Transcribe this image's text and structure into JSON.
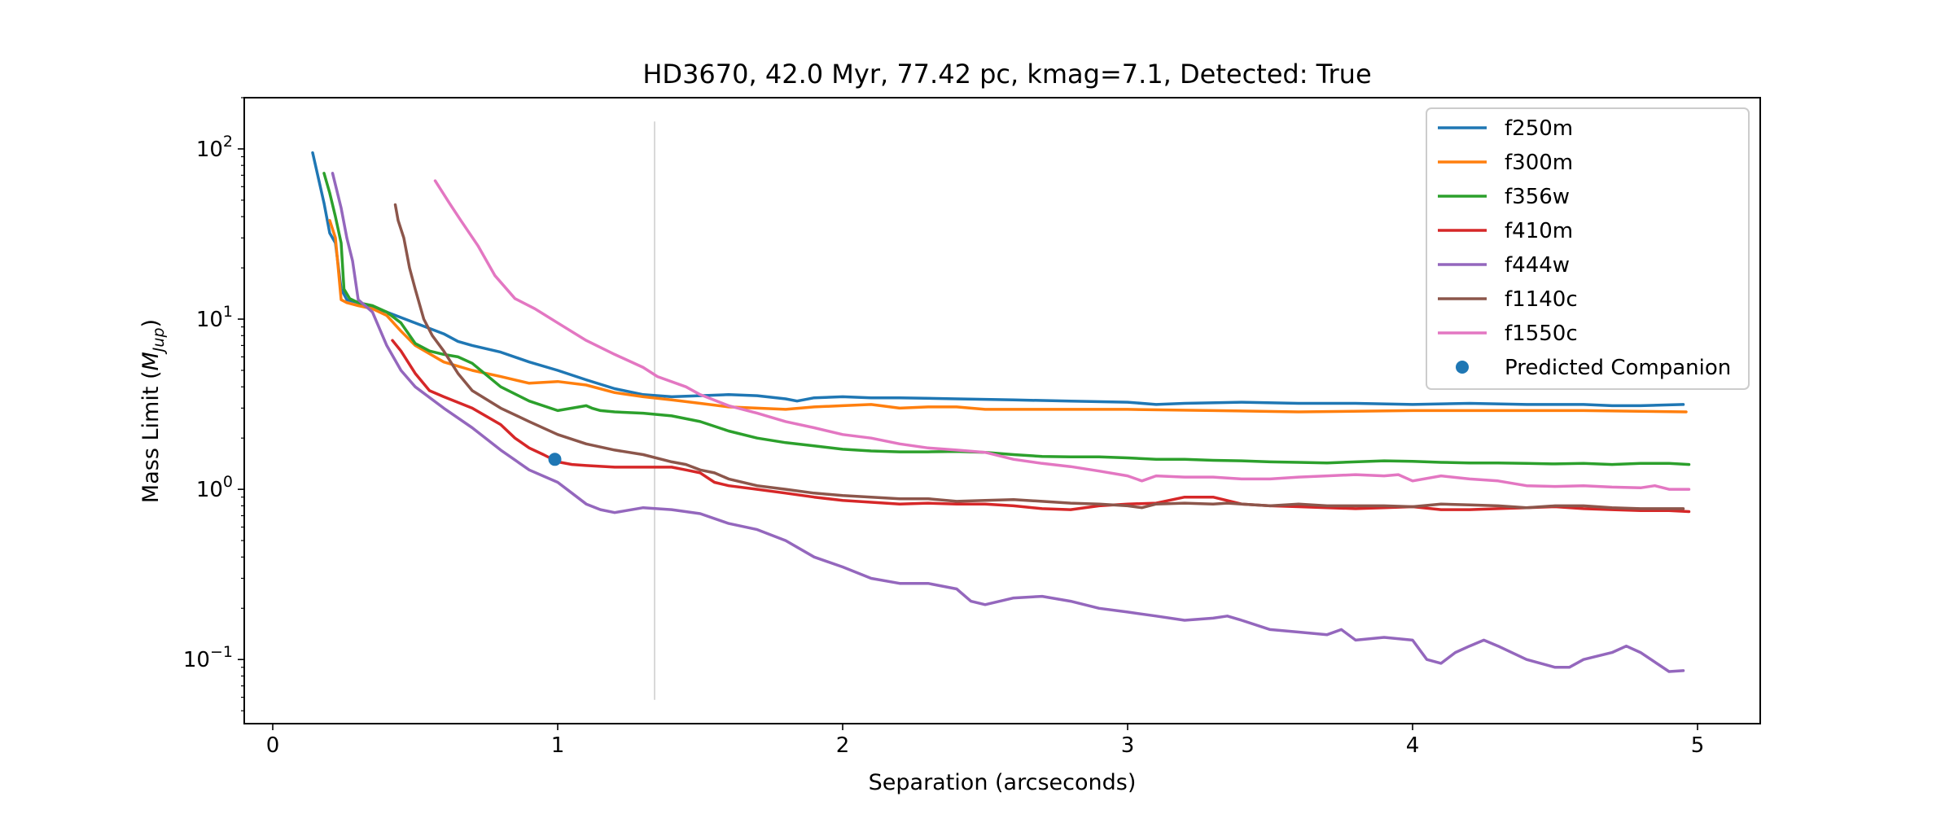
{
  "chart_data": {
    "type": "line",
    "title": "HD3670, 42.0 Myr, 77.42 pc, kmag=7.1, Detected: True",
    "xlabel": "Separation (arcseconds)",
    "ylabel_prefix": "Mass Limit (",
    "ylabel_symbol": "M",
    "ylabel_subscript": "Jup",
    "ylabel_suffix": ")",
    "xlim": [
      -0.1,
      5.22
    ],
    "ylim": [
      0.042,
      200
    ],
    "yscale": "log",
    "x_ticks": [
      0,
      1,
      2,
      3,
      4,
      5
    ],
    "x_tick_labels": [
      "0",
      "1",
      "2",
      "3",
      "4",
      "5"
    ],
    "y_ticks": [
      {
        "value": 100,
        "base": "10",
        "exp": "2"
      },
      {
        "value": 10,
        "base": "10",
        "exp": "1"
      },
      {
        "value": 1,
        "base": "10",
        "exp": "0"
      },
      {
        "value": 0.1,
        "base": "10",
        "exp": "−1"
      }
    ],
    "grid": false,
    "legend_position": "top-right",
    "vertical_line": {
      "x": 1.34,
      "y_range": [
        0.058,
        145
      ],
      "color": "#d9d9d9"
    },
    "series": [
      {
        "name": "f250m",
        "color": "#1f77b4",
        "x": [
          0.14,
          0.18,
          0.2,
          0.22,
          0.24,
          0.26,
          0.3,
          0.4,
          0.5,
          0.6,
          0.65,
          0.7,
          0.8,
          0.9,
          1.0,
          1.1,
          1.2,
          1.3,
          1.4,
          1.5,
          1.6,
          1.7,
          1.8,
          1.84,
          1.9,
          2.0,
          2.1,
          2.2,
          2.4,
          2.6,
          2.8,
          3.0,
          3.1,
          3.2,
          3.4,
          3.6,
          3.8,
          4.0,
          4.2,
          4.4,
          4.6,
          4.7,
          4.8,
          4.95
        ],
        "y": [
          95,
          48,
          32,
          28,
          15,
          13,
          12.5,
          11,
          9.5,
          8.2,
          7.4,
          7.0,
          6.4,
          5.6,
          5.0,
          4.4,
          3.9,
          3.6,
          3.5,
          3.55,
          3.6,
          3.55,
          3.4,
          3.3,
          3.45,
          3.5,
          3.45,
          3.45,
          3.4,
          3.35,
          3.3,
          3.25,
          3.15,
          3.2,
          3.25,
          3.2,
          3.2,
          3.15,
          3.2,
          3.15,
          3.15,
          3.1,
          3.1,
          3.15
        ]
      },
      {
        "name": "f300m",
        "color": "#ff7f0e",
        "x": [
          0.2,
          0.22,
          0.24,
          0.26,
          0.3,
          0.35,
          0.4,
          0.45,
          0.5,
          0.6,
          0.7,
          0.8,
          0.9,
          1.0,
          1.1,
          1.2,
          1.3,
          1.4,
          1.5,
          1.6,
          1.8,
          1.9,
          2.0,
          2.1,
          2.2,
          2.3,
          2.4,
          2.5,
          2.7,
          3.0,
          3.3,
          3.6,
          4.0,
          4.3,
          4.6,
          4.96
        ],
        "y": [
          38,
          30,
          13,
          12.5,
          12,
          11.5,
          10.5,
          8.5,
          7.0,
          5.6,
          5.0,
          4.6,
          4.2,
          4.3,
          4.1,
          3.7,
          3.5,
          3.35,
          3.2,
          3.05,
          2.95,
          3.05,
          3.1,
          3.15,
          3.0,
          3.05,
          3.05,
          2.95,
          2.95,
          2.95,
          2.9,
          2.85,
          2.9,
          2.9,
          2.9,
          2.85
        ]
      },
      {
        "name": "f356w",
        "color": "#2ca02c",
        "x": [
          0.18,
          0.2,
          0.22,
          0.24,
          0.25,
          0.27,
          0.3,
          0.35,
          0.4,
          0.45,
          0.5,
          0.55,
          0.6,
          0.65,
          0.7,
          0.8,
          0.9,
          1.0,
          1.05,
          1.1,
          1.12,
          1.15,
          1.2,
          1.3,
          1.4,
          1.5,
          1.6,
          1.7,
          1.8,
          1.9,
          2.0,
          2.1,
          2.2,
          2.3,
          2.4,
          2.5,
          2.6,
          2.7,
          2.8,
          2.9,
          3.0,
          3.1,
          3.2,
          3.3,
          3.4,
          3.5,
          3.6,
          3.7,
          3.8,
          3.9,
          4.0,
          4.1,
          4.2,
          4.3,
          4.4,
          4.5,
          4.6,
          4.7,
          4.8,
          4.9,
          4.97
        ],
        "y": [
          72,
          55,
          40,
          28,
          15,
          13.2,
          12.5,
          12,
          11,
          9.5,
          7.2,
          6.5,
          6.2,
          6.0,
          5.5,
          4.0,
          3.3,
          2.9,
          3.0,
          3.1,
          3.0,
          2.9,
          2.85,
          2.8,
          2.7,
          2.5,
          2.2,
          2.0,
          1.88,
          1.8,
          1.72,
          1.68,
          1.66,
          1.66,
          1.67,
          1.65,
          1.6,
          1.56,
          1.55,
          1.55,
          1.53,
          1.5,
          1.5,
          1.48,
          1.47,
          1.45,
          1.44,
          1.43,
          1.45,
          1.47,
          1.46,
          1.44,
          1.43,
          1.43,
          1.42,
          1.41,
          1.42,
          1.4,
          1.42,
          1.42,
          1.4
        ]
      },
      {
        "name": "f410m",
        "color": "#d62728",
        "x": [
          0.42,
          0.45,
          0.5,
          0.55,
          0.6,
          0.7,
          0.8,
          0.85,
          0.9,
          0.95,
          1.0,
          1.05,
          1.1,
          1.2,
          1.3,
          1.4,
          1.45,
          1.5,
          1.55,
          1.6,
          1.7,
          1.8,
          1.9,
          2.0,
          2.1,
          2.2,
          2.3,
          2.4,
          2.5,
          2.6,
          2.7,
          2.8,
          2.9,
          3.0,
          3.1,
          3.2,
          3.3,
          3.4,
          3.5,
          3.6,
          3.7,
          3.8,
          3.9,
          4.0,
          4.1,
          4.2,
          4.3,
          4.4,
          4.5,
          4.6,
          4.7,
          4.8,
          4.9,
          4.97
        ],
        "y": [
          7.5,
          6.5,
          4.8,
          3.8,
          3.5,
          3.0,
          2.4,
          2.0,
          1.75,
          1.6,
          1.45,
          1.4,
          1.38,
          1.35,
          1.35,
          1.35,
          1.3,
          1.25,
          1.1,
          1.05,
          1.0,
          0.95,
          0.9,
          0.86,
          0.84,
          0.82,
          0.83,
          0.82,
          0.82,
          0.8,
          0.77,
          0.76,
          0.8,
          0.82,
          0.83,
          0.9,
          0.9,
          0.82,
          0.8,
          0.79,
          0.78,
          0.77,
          0.78,
          0.79,
          0.76,
          0.76,
          0.77,
          0.78,
          0.79,
          0.77,
          0.76,
          0.75,
          0.75,
          0.74
        ]
      },
      {
        "name": "f444w",
        "color": "#9467bd",
        "x": [
          0.21,
          0.24,
          0.26,
          0.28,
          0.3,
          0.35,
          0.4,
          0.45,
          0.5,
          0.6,
          0.7,
          0.8,
          0.9,
          1.0,
          1.05,
          1.1,
          1.15,
          1.2,
          1.3,
          1.4,
          1.5,
          1.6,
          1.7,
          1.8,
          1.9,
          2.0,
          2.1,
          2.2,
          2.3,
          2.4,
          2.45,
          2.5,
          2.6,
          2.7,
          2.8,
          2.9,
          3.0,
          3.1,
          3.2,
          3.3,
          3.35,
          3.4,
          3.5,
          3.6,
          3.7,
          3.75,
          3.8,
          3.9,
          4.0,
          4.05,
          4.1,
          4.15,
          4.2,
          4.25,
          4.3,
          4.4,
          4.5,
          4.55,
          4.6,
          4.7,
          4.75,
          4.8,
          4.9,
          4.95
        ],
        "y": [
          72,
          45,
          30,
          22,
          13,
          11,
          7.0,
          5.0,
          4.0,
          3.0,
          2.3,
          1.7,
          1.3,
          1.1,
          0.95,
          0.82,
          0.76,
          0.73,
          0.78,
          0.76,
          0.72,
          0.63,
          0.58,
          0.5,
          0.4,
          0.35,
          0.3,
          0.28,
          0.28,
          0.26,
          0.22,
          0.21,
          0.23,
          0.235,
          0.22,
          0.2,
          0.19,
          0.18,
          0.17,
          0.175,
          0.18,
          0.17,
          0.15,
          0.145,
          0.14,
          0.15,
          0.13,
          0.135,
          0.13,
          0.1,
          0.095,
          0.11,
          0.12,
          0.13,
          0.12,
          0.1,
          0.09,
          0.09,
          0.1,
          0.11,
          0.12,
          0.11,
          0.085,
          0.086
        ]
      },
      {
        "name": "f1140c",
        "color": "#8c564b",
        "x": [
          0.43,
          0.44,
          0.46,
          0.48,
          0.5,
          0.53,
          0.56,
          0.6,
          0.65,
          0.7,
          0.8,
          0.9,
          1.0,
          1.1,
          1.2,
          1.3,
          1.4,
          1.45,
          1.5,
          1.55,
          1.6,
          1.7,
          1.8,
          1.9,
          2.0,
          2.1,
          2.2,
          2.3,
          2.4,
          2.5,
          2.6,
          2.7,
          2.8,
          2.9,
          3.0,
          3.05,
          3.1,
          3.2,
          3.3,
          3.35,
          3.4,
          3.5,
          3.6,
          3.7,
          3.8,
          3.9,
          4.0,
          4.1,
          4.2,
          4.3,
          4.4,
          4.5,
          4.6,
          4.7,
          4.8,
          4.95
        ],
        "y": [
          47,
          38,
          30,
          20,
          15,
          10,
          8,
          6.5,
          4.8,
          3.8,
          3.0,
          2.5,
          2.1,
          1.85,
          1.7,
          1.6,
          1.45,
          1.4,
          1.3,
          1.25,
          1.15,
          1.05,
          1.0,
          0.95,
          0.92,
          0.9,
          0.88,
          0.88,
          0.85,
          0.86,
          0.87,
          0.85,
          0.83,
          0.82,
          0.8,
          0.78,
          0.82,
          0.83,
          0.82,
          0.83,
          0.82,
          0.8,
          0.82,
          0.8,
          0.8,
          0.8,
          0.79,
          0.82,
          0.81,
          0.8,
          0.78,
          0.8,
          0.8,
          0.78,
          0.77,
          0.77
        ]
      },
      {
        "name": "f1550c",
        "color": "#e377c2",
        "x": [
          0.57,
          0.62,
          0.66,
          0.72,
          0.78,
          0.85,
          0.92,
          1.0,
          1.1,
          1.2,
          1.3,
          1.35,
          1.45,
          1.5,
          1.6,
          1.7,
          1.8,
          1.9,
          2.0,
          2.1,
          2.2,
          2.3,
          2.4,
          2.5,
          2.6,
          2.7,
          2.8,
          2.9,
          3.0,
          3.05,
          3.1,
          3.2,
          3.3,
          3.4,
          3.5,
          3.6,
          3.7,
          3.8,
          3.9,
          3.95,
          4.0,
          4.1,
          4.2,
          4.3,
          4.4,
          4.5,
          4.6,
          4.7,
          4.8,
          4.85,
          4.9,
          4.97
        ],
        "y": [
          65,
          48,
          38,
          27,
          18,
          13.2,
          11.5,
          9.5,
          7.5,
          6.2,
          5.2,
          4.6,
          4.0,
          3.6,
          3.1,
          2.8,
          2.5,
          2.3,
          2.1,
          2.0,
          1.85,
          1.75,
          1.7,
          1.65,
          1.5,
          1.42,
          1.36,
          1.28,
          1.2,
          1.12,
          1.2,
          1.18,
          1.18,
          1.15,
          1.15,
          1.18,
          1.2,
          1.22,
          1.2,
          1.22,
          1.12,
          1.2,
          1.15,
          1.12,
          1.05,
          1.04,
          1.05,
          1.03,
          1.02,
          1.05,
          1.0,
          1.0
        ]
      }
    ],
    "scatter": {
      "name": "Predicted Companion",
      "color": "#1f77b4",
      "points": [
        {
          "x": 0.99,
          "y": 1.5
        }
      ]
    }
  }
}
